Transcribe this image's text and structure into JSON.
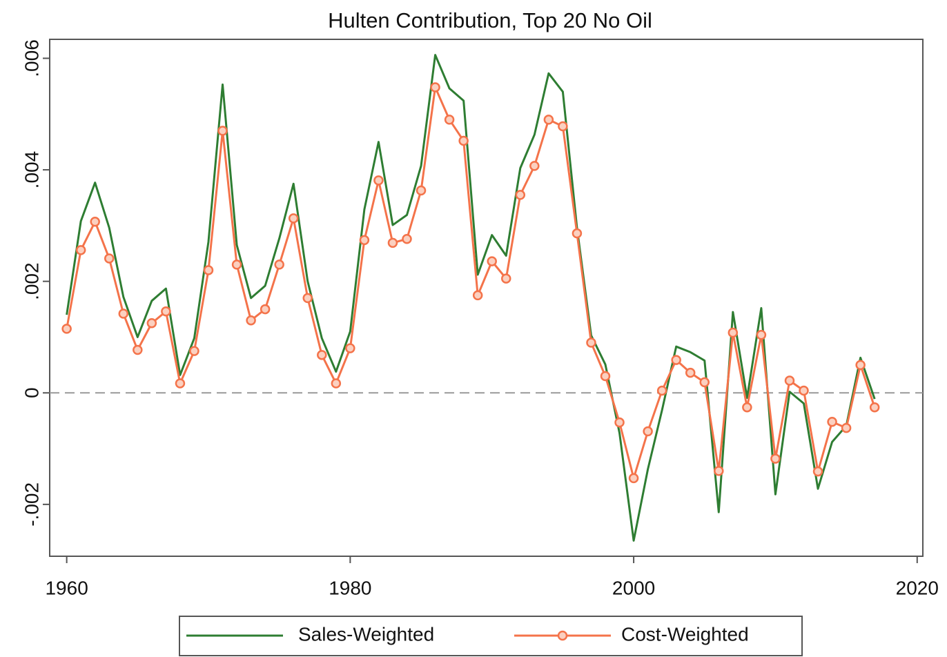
{
  "chart_data": {
    "type": "line",
    "title": "Hulten Contribution, Top 20 No Oil",
    "x": [
      1960,
      1961,
      1962,
      1963,
      1964,
      1965,
      1966,
      1967,
      1968,
      1969,
      1970,
      1971,
      1972,
      1973,
      1974,
      1975,
      1976,
      1977,
      1978,
      1979,
      1980,
      1981,
      1982,
      1983,
      1984,
      1985,
      1986,
      1987,
      1988,
      1989,
      1990,
      1991,
      1992,
      1993,
      1994,
      1995,
      1996,
      1997,
      1998,
      1999,
      2000,
      2001,
      2002,
      2003,
      2004,
      2005,
      2006,
      2007,
      2008,
      2009,
      2010,
      2011,
      2012,
      2013,
      2014,
      2015,
      2016,
      2017
    ],
    "series": [
      {
        "name": "Sales-Weighted",
        "color": "#2e7d32",
        "marker": "none",
        "values": [
          0.0014,
          0.00308,
          0.00377,
          0.00296,
          0.00172,
          0.001,
          0.00165,
          0.00187,
          0.00032,
          0.00098,
          0.00271,
          0.00553,
          0.00265,
          0.0017,
          0.00192,
          0.00277,
          0.00375,
          0.002,
          0.00098,
          0.00038,
          0.0011,
          0.00329,
          0.0045,
          0.00301,
          0.00319,
          0.00407,
          0.00606,
          0.00546,
          0.00524,
          0.00212,
          0.00283,
          0.00246,
          0.00403,
          0.00463,
          0.00573,
          0.0054,
          0.00296,
          0.00103,
          0.00051,
          -0.00072,
          -0.00265,
          -0.00137,
          -0.00031,
          0.00083,
          0.00073,
          0.00058,
          -0.00214,
          0.00145,
          -9e-05,
          0.00152,
          -0.00182,
          2e-05,
          -0.00019,
          -0.00172,
          -0.00088,
          -0.00059,
          0.00063,
          -0.00011
        ]
      },
      {
        "name": "Cost-Weighted",
        "color": "#f4734a",
        "marker": "circle",
        "values": [
          0.00115,
          0.00256,
          0.00307,
          0.00241,
          0.00142,
          0.00077,
          0.00125,
          0.00146,
          0.00017,
          0.00075,
          0.0022,
          0.0047,
          0.0023,
          0.0013,
          0.0015,
          0.0023,
          0.00313,
          0.0017,
          0.00068,
          0.00017,
          0.0008,
          0.00274,
          0.00381,
          0.00269,
          0.00276,
          0.00363,
          0.00548,
          0.0049,
          0.00452,
          0.00175,
          0.00236,
          0.00205,
          0.00355,
          0.00407,
          0.0049,
          0.00478,
          0.00286,
          0.0009,
          0.0003,
          -0.00053,
          -0.00153,
          -0.00069,
          4e-05,
          0.00059,
          0.00036,
          0.00019,
          -0.0014,
          0.00108,
          -0.00026,
          0.00104,
          -0.00118,
          0.00022,
          4e-05,
          -0.00141,
          -0.00052,
          -0.00063,
          0.0005,
          -0.00026
        ]
      }
    ],
    "xlim": [
      1958.8,
      2020.4
    ],
    "xticks": [
      1960,
      1980,
      2000,
      2020
    ],
    "ylim": [
      -0.00293,
      0.00634
    ],
    "yticks": [
      {
        "value": -0.002,
        "label": "-.002"
      },
      0,
      {
        "value": 0.002,
        "label": ".002"
      },
      {
        "value": 0.004,
        "label": ".004"
      },
      {
        "value": 0.006,
        "label": ".006"
      }
    ],
    "hline": 0,
    "grid": false,
    "legend": "bottom"
  }
}
